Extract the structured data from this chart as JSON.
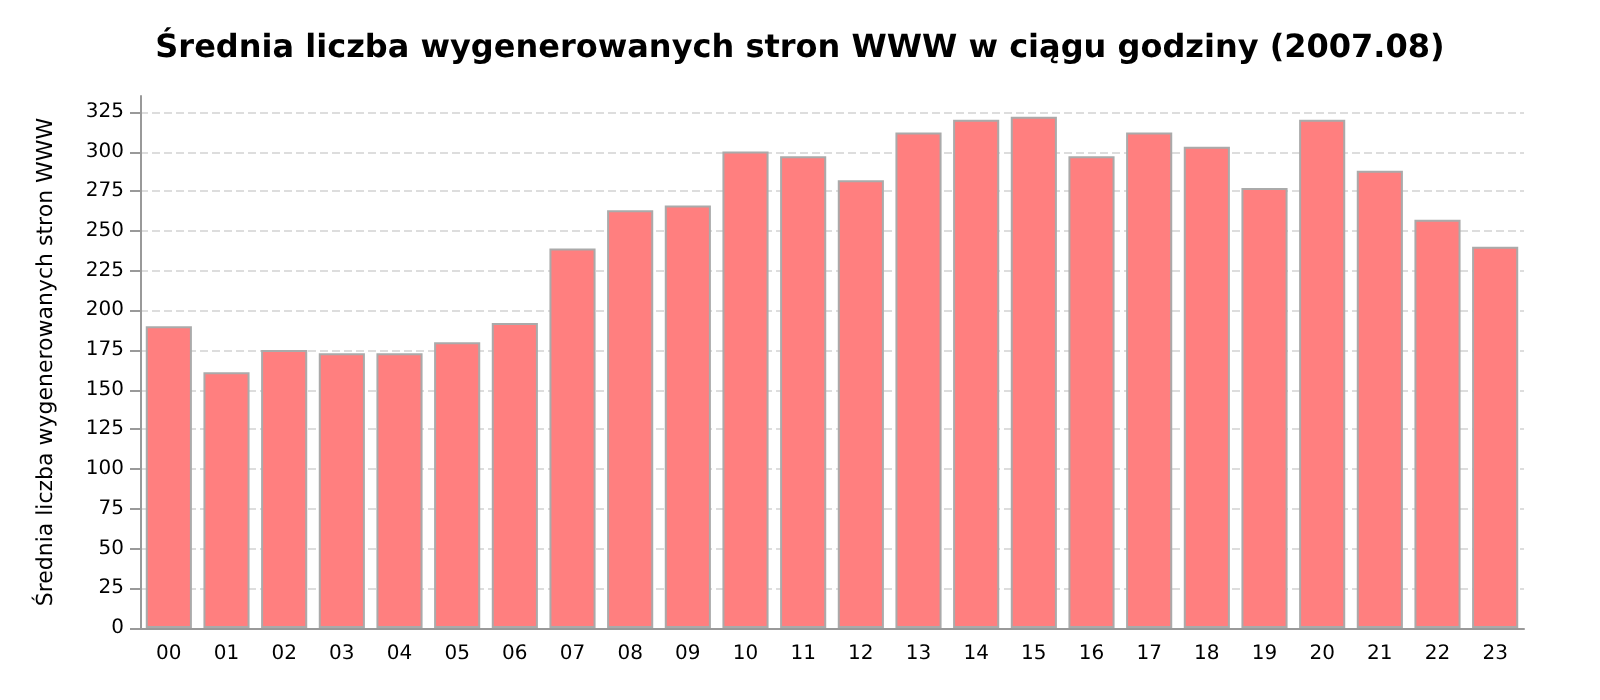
{
  "chart_data": {
    "type": "bar",
    "title": "Średnia liczba wygenerowanych stron WWW w ciągu godziny (2007.08)",
    "ylabel": "Średnia liczba wygenerowanych stron WWW",
    "categories": [
      "00",
      "01",
      "02",
      "03",
      "04",
      "05",
      "06",
      "07",
      "08",
      "09",
      "10",
      "11",
      "12",
      "13",
      "14",
      "15",
      "16",
      "17",
      "18",
      "19",
      "20",
      "21",
      "22",
      "23"
    ],
    "values": [
      190,
      161,
      175,
      173,
      173,
      180,
      192,
      239,
      263,
      266,
      300,
      297,
      282,
      312,
      320,
      322,
      297,
      312,
      303,
      277,
      320,
      288,
      257,
      240
    ],
    "color": "#ff7f7f",
    "ylim": [
      0,
      335
    ],
    "yticks": [
      0,
      25,
      50,
      75,
      100,
      125,
      150,
      175,
      200,
      225,
      250,
      275,
      300,
      325
    ],
    "grid": "y"
  }
}
